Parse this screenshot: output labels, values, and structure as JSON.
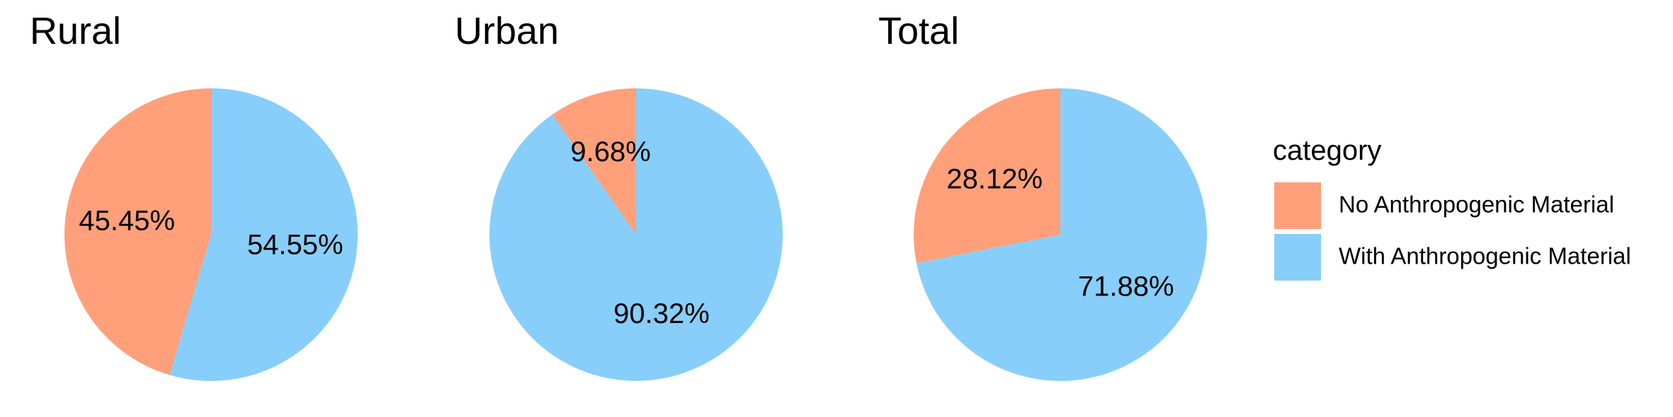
{
  "chart_data": [
    {
      "type": "pie",
      "title": "Rural",
      "categories": [
        "No Anthropogenic Material",
        "With Anthropogenic Material"
      ],
      "values": [
        45.45,
        54.55
      ],
      "labels": [
        "45.45%",
        "54.55%"
      ]
    },
    {
      "type": "pie",
      "title": "Urban",
      "categories": [
        "No Anthropogenic Material",
        "With Anthropogenic Material"
      ],
      "values": [
        9.68,
        90.32
      ],
      "labels": [
        "9.68%",
        "90.32%"
      ]
    },
    {
      "type": "pie",
      "title": "Total",
      "categories": [
        "No Anthropogenic Material",
        "With Anthropogenic Material"
      ],
      "values": [
        28.12,
        71.88
      ],
      "labels": [
        "28.12%",
        "71.88%"
      ]
    }
  ],
  "legend": {
    "title": "category",
    "placement": "right",
    "items": [
      {
        "label": "No Anthropogenic Material",
        "color": "#FFA07A"
      },
      {
        "label": "With Anthropogenic Material",
        "color": "#87CEFA"
      }
    ]
  },
  "colors": {
    "No Anthropogenic Material": "#FFA07A",
    "With Anthropogenic Material": "#87CEFA"
  }
}
